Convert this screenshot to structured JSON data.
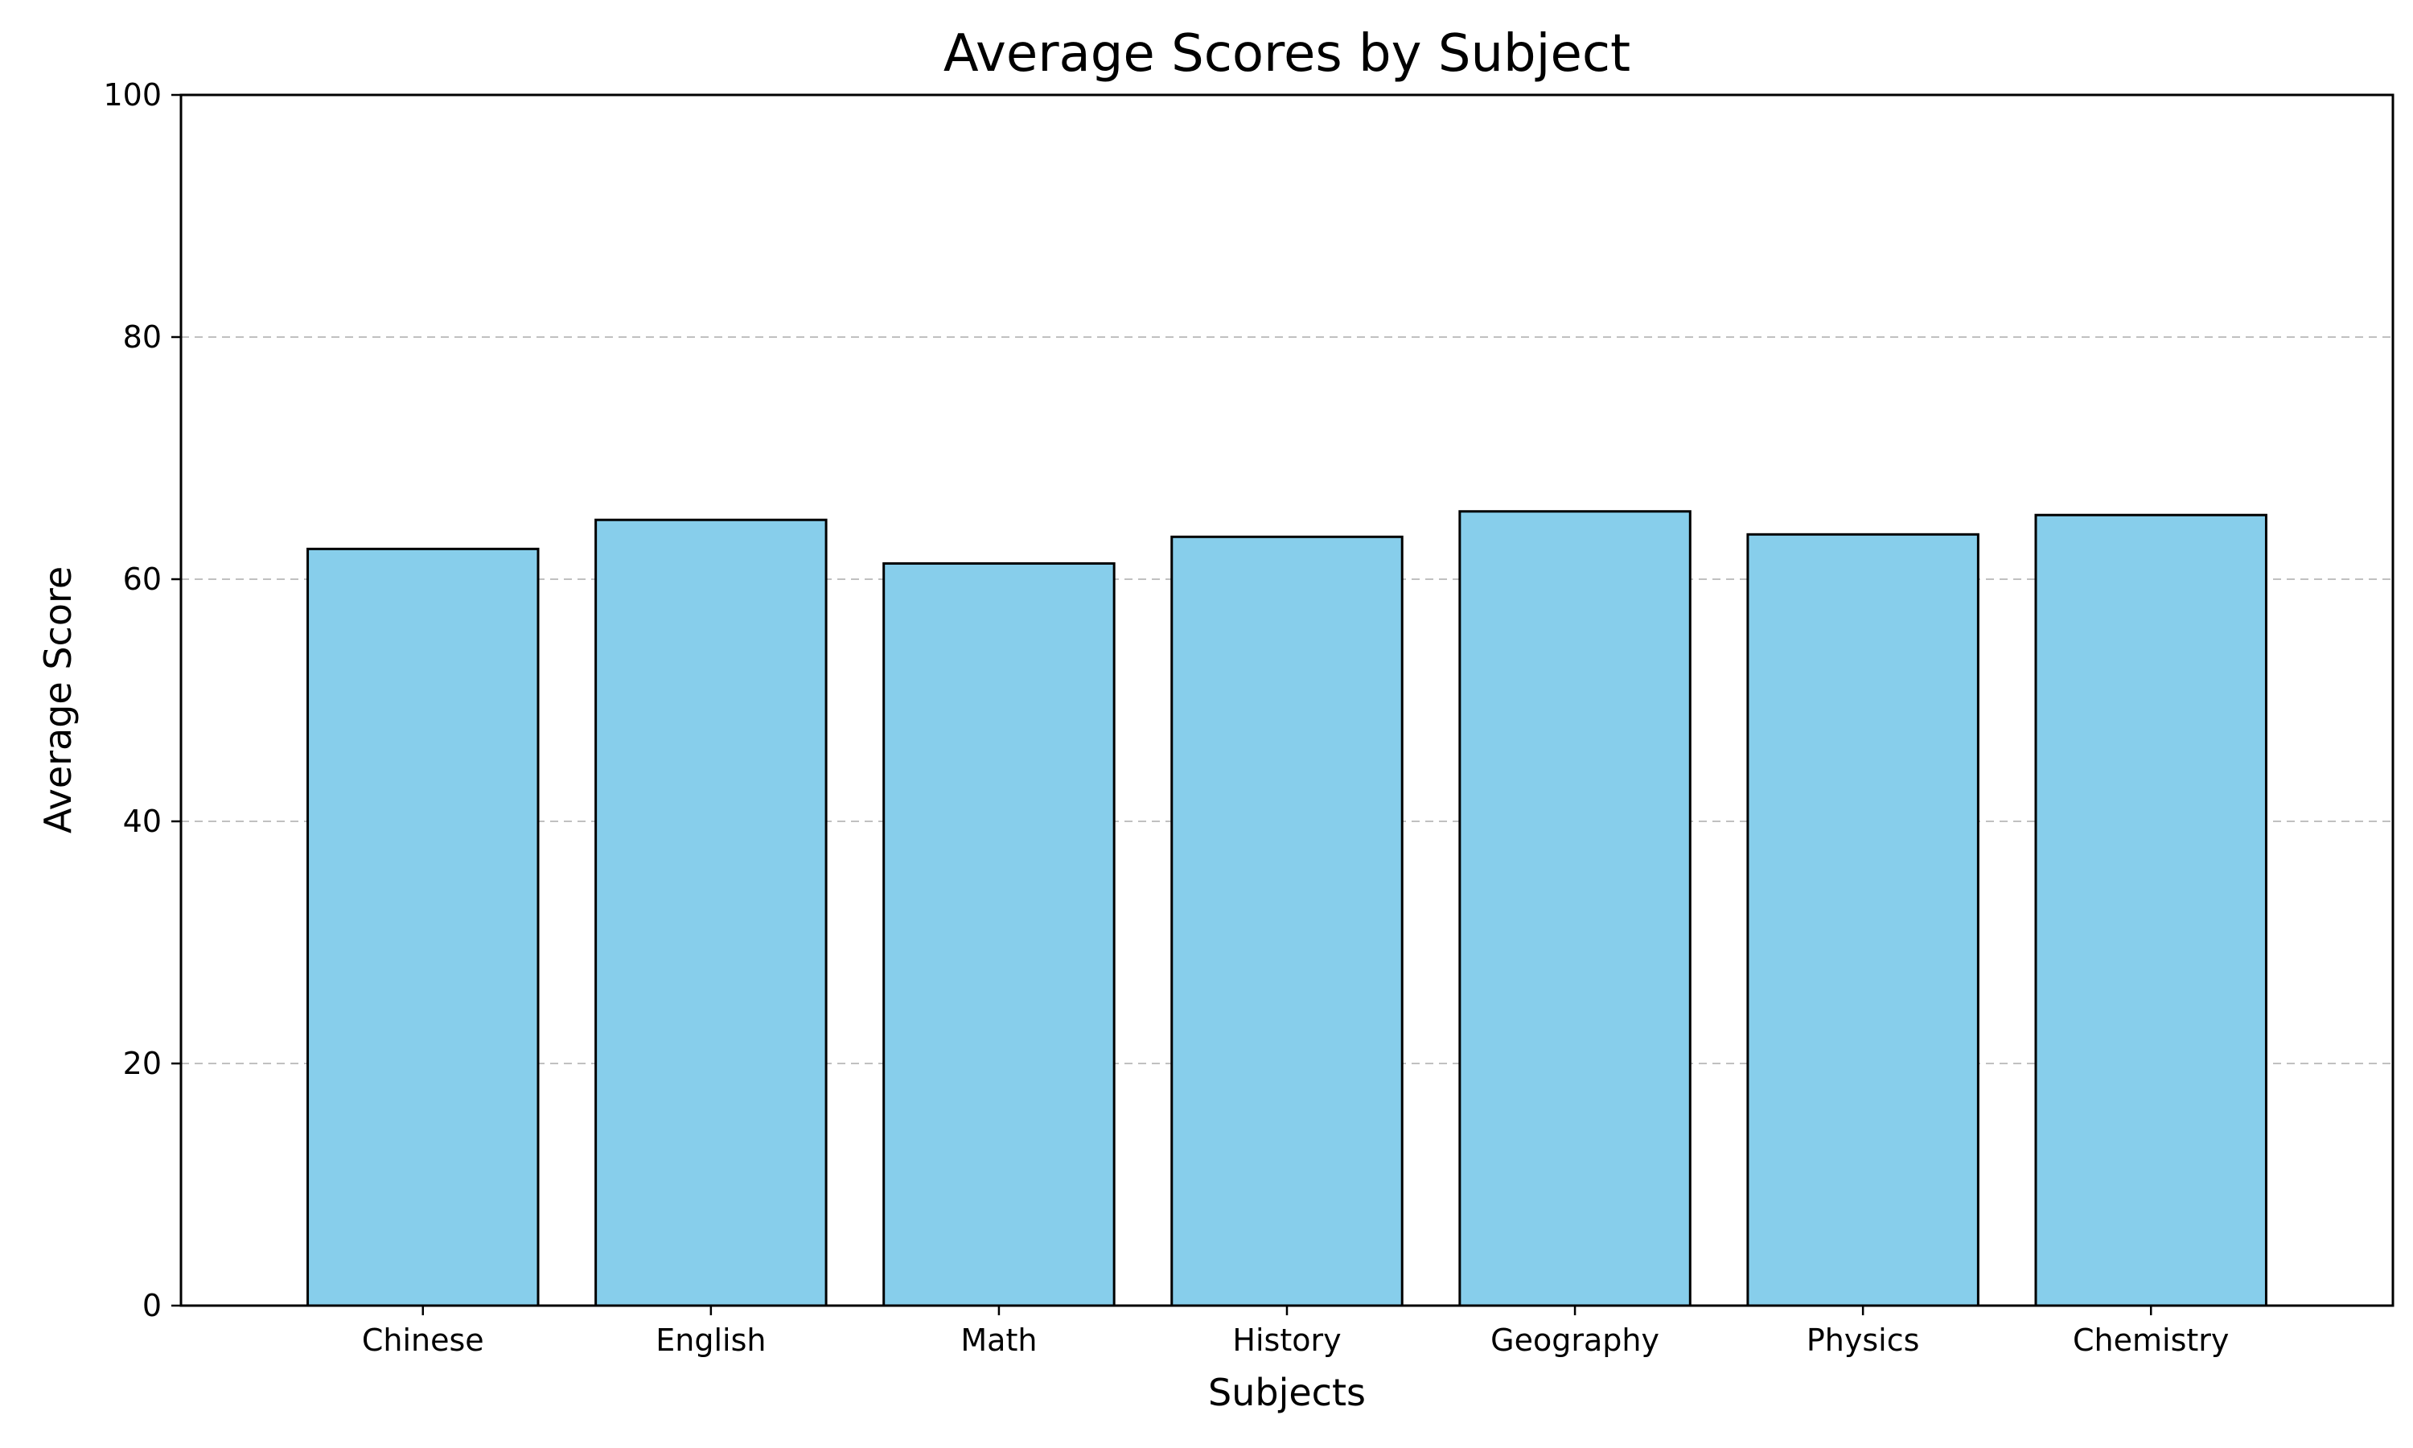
{
  "chart_data": {
    "type": "bar",
    "title": "Average Scores by Subject",
    "xlabel": "Subjects",
    "ylabel": "Average Score",
    "categories": [
      "Chinese",
      "English",
      "Math",
      "History",
      "Geography",
      "Physics",
      "Chemistry"
    ],
    "values": [
      62.5,
      64.9,
      61.3,
      63.5,
      65.6,
      63.7,
      65.3
    ],
    "ylim": [
      0,
      100
    ],
    "yticks": [
      0,
      20,
      40,
      60,
      80,
      100
    ],
    "grid": "y-dashed",
    "legend": "none",
    "colors": {
      "bar_fill": "#87CEEB",
      "bar_edge": "#000000",
      "grid": "#c0c0c0",
      "axis": "#000000",
      "background": "#ffffff"
    }
  }
}
